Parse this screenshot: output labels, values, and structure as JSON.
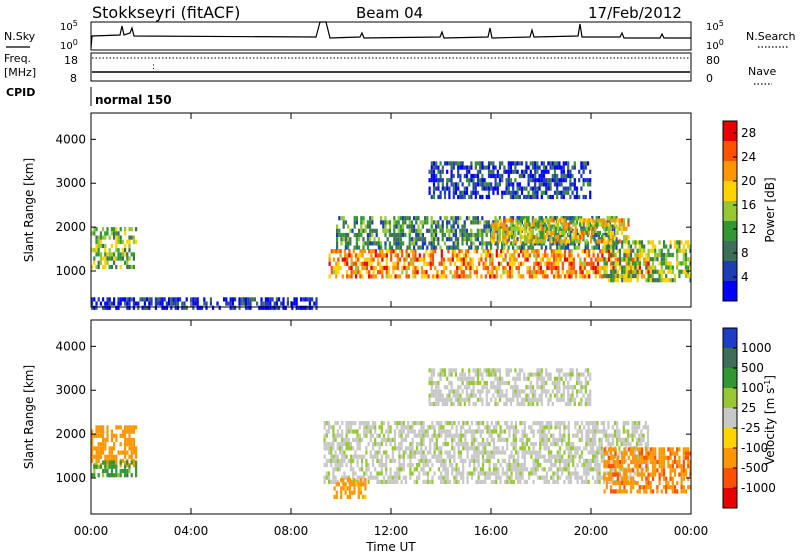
{
  "header": {
    "station": "Stokkseyri (fitACF)",
    "beam": "Beam 04",
    "date": "17/Feb/2012"
  },
  "noise_panel": {
    "left_label": "N.Sky",
    "right_label": "N.Search",
    "tick_top": "10^5",
    "tick_bottom": "10^0"
  },
  "freq_panel": {
    "left_label_line1": "Freq.",
    "left_label_line2": "[MHz]",
    "ticks_left": [
      "18",
      "8"
    ],
    "ticks_right": [
      "80",
      "0"
    ],
    "right_label": "Nave"
  },
  "cpid_panel": {
    "label": "CPID",
    "program": "normal 150"
  },
  "colors": {
    "power_scale": [
      "#0000ff",
      "#1e3cb4",
      "#3c6e5a",
      "#329632",
      "#96c832",
      "#ffd200",
      "#ff9600",
      "#ff5000",
      "#e60000"
    ],
    "velocity_scale": [
      "#1e3cc8",
      "#3c6e5a",
      "#329632",
      "#96c832",
      "#c8c8c8",
      "#ffd200",
      "#ff9600",
      "#ff5000",
      "#e60000"
    ],
    "ground_scatter": "#bebebe"
  },
  "chart_data": [
    {
      "type": "heatmap",
      "title": "",
      "xlabel": "Time UT",
      "ylabel": "Slant Range [km]",
      "x_ticks": [
        "00:00",
        "04:00",
        "08:00",
        "12:00",
        "16:00",
        "20:00",
        "00:00"
      ],
      "xlim_hours": [
        0,
        24
      ],
      "ylim": [
        180,
        4600
      ],
      "y_ticks": [
        1000,
        2000,
        3000,
        4000
      ],
      "colorbar": {
        "label": "Power [dB]",
        "ticks": [
          4,
          8,
          12,
          16,
          20,
          24,
          28
        ],
        "range": [
          0,
          30
        ]
      },
      "echo_regions": [
        {
          "t": [
            0.0,
            1.8
          ],
          "r": [
            1050,
            2000
          ],
          "value_dB": 14
        },
        {
          "t": [
            0.0,
            9.0
          ],
          "r": [
            200,
            400
          ],
          "value_dB": 3
        },
        {
          "t": [
            9.5,
            22.3
          ],
          "r": [
            900,
            1500
          ],
          "value_dB": 22
        },
        {
          "t": [
            9.8,
            21.0
          ],
          "r": [
            1500,
            2250
          ],
          "value_dB": 10
        },
        {
          "t": [
            16.0,
            21.5
          ],
          "r": [
            1700,
            2200
          ],
          "value_dB": 18
        },
        {
          "t": [
            13.5,
            20.0
          ],
          "r": [
            2700,
            3500
          ],
          "value_dB": 5
        },
        {
          "t": [
            20.5,
            24.0
          ],
          "r": [
            800,
            1700
          ],
          "value_dB": 14
        }
      ]
    },
    {
      "type": "heatmap",
      "title": "",
      "xlabel": "Time UT",
      "ylabel": "Slant Range [km]",
      "x_ticks": [
        "00:00",
        "04:00",
        "08:00",
        "12:00",
        "16:00",
        "20:00",
        "00:00"
      ],
      "xlim_hours": [
        0,
        24
      ],
      "ylim": [
        180,
        4600
      ],
      "y_ticks": [
        1000,
        2000,
        3000,
        4000
      ],
      "colorbar": {
        "label": "Velocity [m s^-1]",
        "ticks": [
          1000,
          500,
          100,
          25,
          -25,
          -100,
          -500,
          -1000
        ]
      },
      "echo_regions": [
        {
          "t": [
            0.0,
            1.8
          ],
          "r": [
            1300,
            2200
          ],
          "value_ms": -300
        },
        {
          "t": [
            0.0,
            1.8
          ],
          "r": [
            1050,
            1400
          ],
          "value_ms": 60
        },
        {
          "t": [
            9.3,
            22.3
          ],
          "r": [
            900,
            2300
          ],
          "value_ms": 0
        },
        {
          "t": [
            13.5,
            20.0
          ],
          "r": [
            2700,
            3500
          ],
          "value_ms": 0
        },
        {
          "t": [
            9.7,
            11.0
          ],
          "r": [
            550,
            1000
          ],
          "value_ms": -200
        },
        {
          "t": [
            20.5,
            24.0
          ],
          "r": [
            700,
            1700
          ],
          "value_ms": -400
        }
      ]
    }
  ]
}
